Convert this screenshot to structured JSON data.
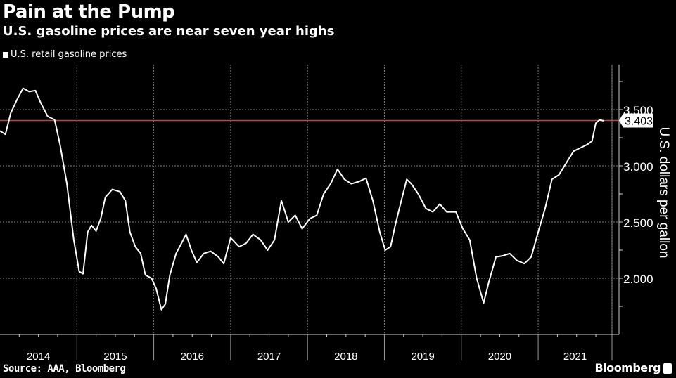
{
  "chart_data": {
    "type": "line",
    "title": "Pain at the Pump",
    "subtitle": "U.S. gasoline prices are near seven year highs",
    "legend": [
      "U.S. retail gasoline prices"
    ],
    "legend_position": "top-left",
    "ylabel": "U.S. dollars per gallon",
    "xlabel": "",
    "ylim": [
      1.5,
      3.9
    ],
    "xlim": [
      2014.0,
      2021.96
    ],
    "yticks": [
      2.0,
      2.5,
      3.0,
      3.5
    ],
    "ytick_labels": [
      "2.000",
      "2.500",
      "3.000",
      "3.500"
    ],
    "xtick_labels": [
      "2014",
      "2015",
      "2016",
      "2017",
      "2018",
      "2019",
      "2020",
      "2021"
    ],
    "grid": true,
    "reference_line": {
      "value": 3.403,
      "label": "3.403",
      "color": "#e03a2f"
    },
    "series": [
      {
        "name": "U.S. retail gasoline prices",
        "color": "#ffffff",
        "x": [
          2014.0,
          2014.07,
          2014.14,
          2014.23,
          2014.3,
          2014.38,
          2014.46,
          2014.53,
          2014.62,
          2014.71,
          2014.78,
          2014.87,
          2014.96,
          2015.03,
          2015.08,
          2015.14,
          2015.19,
          2015.25,
          2015.31,
          2015.37,
          2015.46,
          2015.56,
          2015.63,
          2015.69,
          2015.76,
          2015.83,
          2015.89,
          2015.97,
          2016.03,
          2016.1,
          2016.15,
          2016.21,
          2016.29,
          2016.36,
          2016.42,
          2016.49,
          2016.56,
          2016.65,
          2016.74,
          2016.84,
          2016.91,
          2017.0,
          2017.11,
          2017.2,
          2017.29,
          2017.39,
          2017.48,
          2017.57,
          2017.66,
          2017.75,
          2017.84,
          2017.93,
          2018.03,
          2018.12,
          2018.21,
          2018.3,
          2018.39,
          2018.48,
          2018.57,
          2018.67,
          2018.76,
          2018.85,
          2018.94,
          2019.01,
          2019.08,
          2019.14,
          2019.22,
          2019.29,
          2019.35,
          2019.44,
          2019.54,
          2019.63,
          2019.72,
          2019.81,
          2019.93,
          2020.02,
          2020.11,
          2020.2,
          2020.29,
          2020.36,
          2020.45,
          2020.54,
          2020.63,
          2020.72,
          2020.82,
          2020.91,
          2021.0,
          2021.09,
          2021.18,
          2021.27,
          2021.37,
          2021.46,
          2021.55,
          2021.64,
          2021.7,
          2021.75,
          2021.8,
          2021.85
        ],
        "y": [
          3.31,
          3.28,
          3.47,
          3.6,
          3.69,
          3.66,
          3.67,
          3.56,
          3.44,
          3.41,
          3.19,
          2.84,
          2.34,
          2.06,
          2.04,
          2.41,
          2.47,
          2.42,
          2.53,
          2.72,
          2.79,
          2.77,
          2.69,
          2.41,
          2.28,
          2.22,
          2.03,
          2.0,
          1.91,
          1.72,
          1.77,
          2.03,
          2.22,
          2.31,
          2.39,
          2.25,
          2.14,
          2.22,
          2.24,
          2.19,
          2.13,
          2.36,
          2.28,
          2.31,
          2.39,
          2.34,
          2.25,
          2.34,
          2.69,
          2.5,
          2.56,
          2.44,
          2.53,
          2.56,
          2.75,
          2.84,
          2.97,
          2.88,
          2.84,
          2.86,
          2.89,
          2.69,
          2.41,
          2.25,
          2.28,
          2.47,
          2.69,
          2.88,
          2.84,
          2.75,
          2.62,
          2.59,
          2.66,
          2.59,
          2.59,
          2.44,
          2.34,
          2.0,
          1.78,
          1.97,
          2.19,
          2.2,
          2.22,
          2.16,
          2.13,
          2.19,
          2.41,
          2.62,
          2.88,
          2.92,
          3.03,
          3.13,
          3.16,
          3.19,
          3.22,
          3.38,
          3.41,
          3.4
        ]
      }
    ],
    "source": "Source: AAA, Bloomberg",
    "brand": "Bloomberg"
  }
}
